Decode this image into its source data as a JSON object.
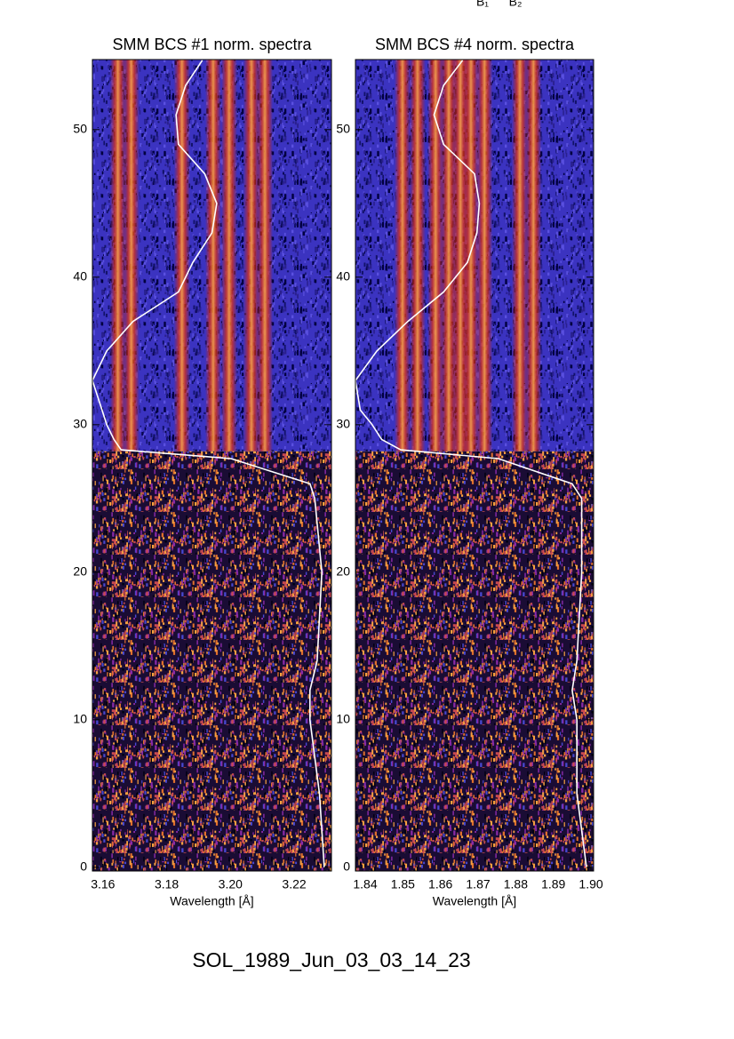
{
  "annotations": [
    "B₁",
    "B₂"
  ],
  "caption": "SOL_1989_Jun_03_03_14_23",
  "chart_data": [
    {
      "type": "spectrogram",
      "title": "SMM BCS #1 norm. spectra",
      "xlabel": "Wavelength [Å]",
      "xlim": [
        3.1567,
        3.2317
      ],
      "xticks": [
        {
          "value": 3.16,
          "label": "3.16"
        },
        {
          "value": 3.18,
          "label": "3.18"
        },
        {
          "value": 3.2,
          "label": "3.20"
        },
        {
          "value": 3.22,
          "label": "3.22"
        }
      ],
      "ylim": [
        -0.25,
        54.75
      ],
      "yticks": [
        0,
        10,
        20,
        30,
        40,
        50
      ],
      "flare_start": 28.2,
      "lines": [
        3.1647,
        3.1689,
        3.1848,
        3.1946,
        3.1996,
        3.2066,
        3.2108
      ],
      "curve": {
        "color": "#ffffff",
        "y": [
          0,
          5,
          10,
          12,
          14,
          20,
          25,
          26,
          27.7,
          28.3,
          29,
          30,
          31,
          33,
          35,
          37,
          39,
          41,
          43,
          45,
          47,
          49,
          51,
          53,
          54.7
        ],
        "values": [
          0.97,
          0.95,
          0.91,
          0.91,
          0.94,
          0.96,
          0.93,
          0.91,
          0.58,
          0.12,
          0.09,
          0.06,
          0.04,
          0.0,
          0.06,
          0.17,
          0.36,
          0.42,
          0.5,
          0.52,
          0.47,
          0.36,
          0.35,
          0.39,
          0.46
        ]
      }
    },
    {
      "type": "spectrogram",
      "title": "SMM BCS #4 norm. spectra",
      "xlabel": "Wavelength [Å]",
      "xlim": [
        1.8374,
        1.9007
      ],
      "xticks": [
        1.84,
        1.85,
        1.86,
        1.87,
        1.88,
        1.89,
        {
          "value": 1.9,
          "label": "1.90"
        }
      ],
      "ylim": [
        -0.25,
        54.75
      ],
      "yticks": [
        0,
        10,
        20,
        30,
        40,
        50
      ],
      "flare_start": 28.2,
      "lines": [
        1.8499,
        1.8539,
        1.8587,
        1.8622,
        1.8653,
        1.8681,
        1.8717,
        1.8811,
        1.8847
      ],
      "curve": {
        "color": "#ffffff",
        "y": [
          0,
          5,
          10,
          12,
          14,
          20,
          25,
          26,
          27.7,
          28.3,
          29,
          30,
          31,
          33,
          35,
          37,
          39,
          41,
          43,
          45,
          47,
          49,
          51,
          53,
          54.7
        ],
        "values": [
          0.97,
          0.93,
          0.93,
          0.91,
          0.93,
          0.95,
          0.95,
          0.91,
          0.6,
          0.19,
          0.11,
          0.07,
          0.02,
          0.0,
          0.09,
          0.22,
          0.37,
          0.47,
          0.51,
          0.52,
          0.5,
          0.37,
          0.33,
          0.37,
          0.45
        ]
      }
    }
  ]
}
